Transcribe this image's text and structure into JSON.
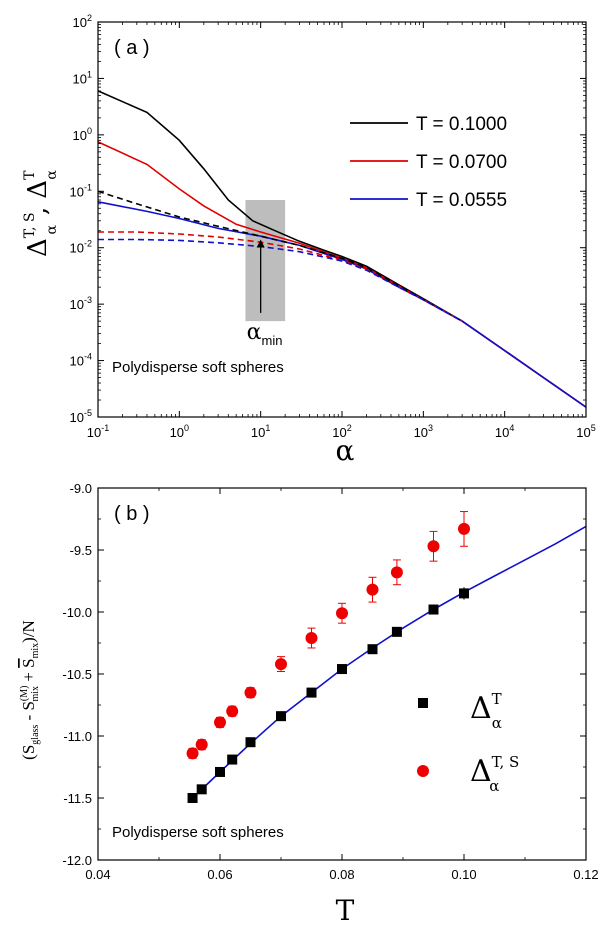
{
  "chart_data": [
    {
      "type": "line",
      "panel_label": "( a )",
      "annotation": "Polydisperse soft spheres",
      "xlabel": "α",
      "ylabel": {
        "main_a": "Δ",
        "sup_a": "T, S",
        "sub_a": "α",
        "sep": ",",
        "main_b": "Δ",
        "sup_b": "T",
        "sub_b": "α"
      },
      "x_scale": "log",
      "y_scale": "log",
      "xlim": [
        0.1,
        100000
      ],
      "ylim": [
        1e-05,
        100
      ],
      "x_ticks": [
        {
          "b": "10",
          "e": "-1"
        },
        {
          "b": "10",
          "e": "0"
        },
        {
          "b": "10",
          "e": "1"
        },
        {
          "b": "10",
          "e": "2"
        },
        {
          "b": "10",
          "e": "3"
        },
        {
          "b": "10",
          "e": "4"
        },
        {
          "b": "10",
          "e": "5"
        }
      ],
      "y_ticks": [
        {
          "b": "10",
          "e": "-5"
        },
        {
          "b": "10",
          "e": "-4"
        },
        {
          "b": "10",
          "e": "-3"
        },
        {
          "b": "10",
          "e": "-2"
        },
        {
          "b": "10",
          "e": "-1"
        },
        {
          "b": "10",
          "e": "0"
        },
        {
          "b": "10",
          "e": "1"
        },
        {
          "b": "10",
          "e": "2"
        }
      ],
      "marker": {
        "label_main": "α",
        "label_sub": "min",
        "x_range": [
          6.5,
          20
        ],
        "y_range": [
          0.0005,
          0.07
        ],
        "arrow_x": 10,
        "arrow_from_y": 0.0007,
        "arrow_to_y": 0.014
      },
      "legend": {
        "placement": "upper-right"
      },
      "series": [
        {
          "name": "T = 0.1000",
          "color": "#000000",
          "dash": false,
          "x": [
            0.1,
            0.4,
            1,
            2,
            4,
            8,
            15,
            30,
            60,
            100,
            200,
            500,
            1000,
            3000,
            10000,
            30000,
            100000
          ],
          "y": [
            6,
            2.5,
            0.8,
            0.25,
            0.07,
            0.03,
            0.02,
            0.013,
            0.009,
            0.007,
            0.0047,
            0.0022,
            0.00125,
            0.0005,
            0.00015,
            5e-05,
            1.5e-05
          ]
        },
        {
          "name": "T = 0.0700",
          "color": "#e00000",
          "dash": false,
          "x": [
            0.1,
            0.4,
            1,
            2,
            5,
            10,
            30,
            100,
            200,
            500,
            1000,
            3000,
            10000,
            30000,
            100000
          ],
          "y": [
            0.75,
            0.3,
            0.11,
            0.055,
            0.026,
            0.019,
            0.012,
            0.0065,
            0.0044,
            0.0021,
            0.0012,
            0.0005,
            0.00015,
            5e-05,
            1.5e-05
          ]
        },
        {
          "name": "T = 0.0555",
          "color": "#1010cc",
          "dash": false,
          "x": [
            0.1,
            0.4,
            1,
            3,
            10,
            30,
            100,
            200,
            500,
            1000,
            3000,
            10000,
            30000,
            100000
          ],
          "y": [
            0.065,
            0.044,
            0.033,
            0.022,
            0.016,
            0.011,
            0.0062,
            0.0042,
            0.002,
            0.0012,
            0.0005,
            0.00015,
            5e-05,
            1.5e-05
          ]
        },
        {
          "name": "",
          "color": "#000000",
          "dash": true,
          "x": [
            0.1,
            0.3,
            1,
            3,
            10,
            30,
            100,
            200,
            500,
            1000,
            3000
          ],
          "y": [
            0.1,
            0.06,
            0.035,
            0.024,
            0.016,
            0.011,
            0.0065,
            0.0044,
            0.0021,
            0.0012,
            0.0005
          ]
        },
        {
          "name": "",
          "color": "#e00000",
          "dash": true,
          "x": [
            0.1,
            0.3,
            1,
            3,
            10,
            30,
            100,
            200,
            500,
            1000,
            3000
          ],
          "y": [
            0.019,
            0.019,
            0.0175,
            0.0155,
            0.0125,
            0.0095,
            0.006,
            0.0042,
            0.002,
            0.0012,
            0.0005
          ]
        },
        {
          "name": "",
          "color": "#1010cc",
          "dash": true,
          "x": [
            0.1,
            0.3,
            1,
            3,
            10,
            30,
            100,
            200,
            500,
            1000,
            3000
          ],
          "y": [
            0.014,
            0.014,
            0.0135,
            0.0122,
            0.0105,
            0.0085,
            0.0058,
            0.004,
            0.002,
            0.0012,
            0.0005
          ]
        }
      ]
    },
    {
      "type": "scatter",
      "panel_label": "( b )",
      "annotation": "Polydisperse soft spheres",
      "xlabel": "T",
      "ylabel": "(S_glass - S_mix^(M) + S_mix)/N",
      "ylabel_parts": {
        "open": "(S",
        "glass": "glass",
        "minus": " - S",
        "M": "(M)",
        "mix1": "mix",
        "plus": " + ",
        "S2": "S",
        "mix2": "mix",
        "close": ")/N"
      },
      "xlim": [
        0.04,
        0.12
      ],
      "ylim": [
        -12.0,
        -9.0
      ],
      "x_ticks": [
        "0.04",
        "0.06",
        "0.08",
        "0.10",
        "0.12"
      ],
      "y_ticks": [
        "-12.0",
        "-11.5",
        "-11.0",
        "-10.5",
        "-10.0",
        "-9.5",
        "-9.0"
      ],
      "series": [
        {
          "legend_main": "Δ",
          "legend_sup": "T",
          "legend_sub": "α",
          "marker": "square",
          "color": "#000000",
          "x": [
            0.0555,
            0.057,
            0.06,
            0.062,
            0.065,
            0.07,
            0.075,
            0.08,
            0.085,
            0.089,
            0.095,
            0.1
          ],
          "y": [
            -11.5,
            -11.43,
            -11.29,
            -11.19,
            -11.05,
            -10.84,
            -10.65,
            -10.46,
            -10.3,
            -10.16,
            -9.98,
            -9.85
          ],
          "err": [
            0.02,
            0.02,
            0.02,
            0.02,
            0.02,
            0.02,
            0.02,
            0.02,
            0.02,
            0.02,
            0.03,
            0.05
          ]
        },
        {
          "legend_main": "Δ",
          "legend_sup": "T, S",
          "legend_sub": "α",
          "marker": "circle",
          "color": "#ee0000",
          "x": [
            0.0555,
            0.057,
            0.06,
            0.062,
            0.065,
            0.07,
            0.075,
            0.08,
            0.085,
            0.089,
            0.095,
            0.1
          ],
          "y": [
            -11.14,
            -11.07,
            -10.89,
            -10.8,
            -10.65,
            -10.42,
            -10.21,
            -10.01,
            -9.82,
            -9.68,
            -9.47,
            -9.33
          ],
          "err": [
            0.04,
            0.04,
            0.04,
            0.04,
            0.04,
            0.06,
            0.08,
            0.08,
            0.1,
            0.1,
            0.12,
            0.14
          ]
        },
        {
          "legend_main": "",
          "marker": "line",
          "color": "#1010cc",
          "x": [
            0.0555,
            0.06,
            0.065,
            0.07,
            0.075,
            0.08,
            0.085,
            0.09,
            0.095,
            0.1,
            0.105,
            0.11,
            0.115,
            0.12
          ],
          "y": [
            -11.5,
            -11.29,
            -11.06,
            -10.84,
            -10.65,
            -10.46,
            -10.29,
            -10.13,
            -9.98,
            -9.84,
            -9.71,
            -9.58,
            -9.45,
            -9.31
          ]
        }
      ]
    }
  ]
}
